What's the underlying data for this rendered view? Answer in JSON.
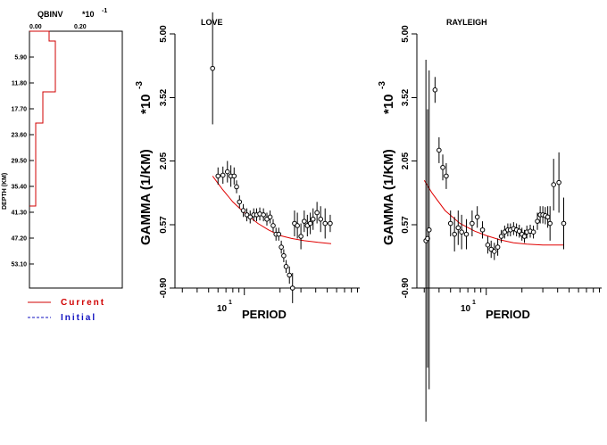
{
  "model_panel": {
    "title": "QBINV",
    "scale": "*10",
    "scale_exp": "-1",
    "x_ticks": [
      "0.00",
      "0.20"
    ],
    "ylabel": "DEPTH (KM)",
    "depth_ticks": [
      "5.90",
      "11.80",
      "17.70",
      "23.60",
      "29.50",
      "35.40",
      "41.30",
      "47.20",
      "53.10"
    ],
    "legend": [
      {
        "label": "Current",
        "color": "#d00000",
        "style": "solid"
      },
      {
        "label": "Initial",
        "color": "#1010c0",
        "style": "dashed"
      }
    ]
  },
  "chart_data": [
    {
      "type": "line",
      "title": "LOVE",
      "xlabel": "PERIOD",
      "ylabel": "GAMMA (1/KM)",
      "y_scale_label": "*10",
      "y_scale_exp": "-3",
      "x_scale": "log",
      "x_tick_label": "10",
      "x_tick_exp": "1",
      "y_ticks": [
        "5.00",
        "3.52",
        "2.05",
        "0.57",
        "-0.90"
      ],
      "ylim": [
        -0.9,
        5.0
      ],
      "xlim": [
        2.6,
        94
      ],
      "observed": [
        {
          "x": 5.4,
          "y": 4.2,
          "err": 1.3
        },
        {
          "x": 6.0,
          "y": 1.7,
          "err": 0.2
        },
        {
          "x": 6.6,
          "y": 1.72,
          "err": 0.2
        },
        {
          "x": 7.2,
          "y": 1.8,
          "err": 0.25
        },
        {
          "x": 7.7,
          "y": 1.7,
          "err": 0.25
        },
        {
          "x": 8.2,
          "y": 1.7,
          "err": 0.2
        },
        {
          "x": 8.6,
          "y": 1.45,
          "err": 0.15
        },
        {
          "x": 9.1,
          "y": 1.1,
          "err": 0.15
        },
        {
          "x": 9.8,
          "y": 0.9,
          "err": 0.15
        },
        {
          "x": 10.5,
          "y": 0.8,
          "err": 0.15
        },
        {
          "x": 11.2,
          "y": 0.75,
          "err": 0.15
        },
        {
          "x": 12.0,
          "y": 0.8,
          "err": 0.15
        },
        {
          "x": 12.7,
          "y": 0.8,
          "err": 0.15
        },
        {
          "x": 13.5,
          "y": 0.82,
          "err": 0.15
        },
        {
          "x": 14.5,
          "y": 0.8,
          "err": 0.15
        },
        {
          "x": 15.5,
          "y": 0.7,
          "err": 0.15
        },
        {
          "x": 16.5,
          "y": 0.75,
          "err": 0.15
        },
        {
          "x": 17.5,
          "y": 0.55,
          "err": 0.15
        },
        {
          "x": 18.5,
          "y": 0.35,
          "err": 0.15
        },
        {
          "x": 19.5,
          "y": 0.35,
          "err": 0.15
        },
        {
          "x": 20.5,
          "y": 0.05,
          "err": 0.15
        },
        {
          "x": 21.5,
          "y": -0.15,
          "err": 0.15
        },
        {
          "x": 22.5,
          "y": -0.4,
          "err": 0.15
        },
        {
          "x": 24.0,
          "y": -0.6,
          "err": 0.2
        },
        {
          "x": 25.5,
          "y": -0.9,
          "err": 0.35
        },
        {
          "x": 26.5,
          "y": 0.6,
          "err": 0.3
        },
        {
          "x": 28.0,
          "y": 0.55,
          "err": 0.3
        },
        {
          "x": 30.0,
          "y": 0.3,
          "err": 0.3
        },
        {
          "x": 32.0,
          "y": 0.65,
          "err": 0.25
        },
        {
          "x": 34.0,
          "y": 0.55,
          "err": 0.25
        },
        {
          "x": 36.0,
          "y": 0.6,
          "err": 0.25
        },
        {
          "x": 38.0,
          "y": 0.7,
          "err": 0.25
        },
        {
          "x": 41.0,
          "y": 0.85,
          "err": 0.25
        },
        {
          "x": 44.0,
          "y": 0.7,
          "err": 0.3
        },
        {
          "x": 48.0,
          "y": 0.6,
          "err": 0.35
        },
        {
          "x": 53.0,
          "y": 0.6,
          "err": 0.2
        }
      ],
      "predicted": [
        [
          5.4,
          1.7
        ],
        [
          6.5,
          1.4
        ],
        [
          8,
          1.1
        ],
        [
          10,
          0.85
        ],
        [
          13,
          0.6
        ],
        [
          16,
          0.45
        ],
        [
          20,
          0.32
        ],
        [
          25,
          0.25
        ],
        [
          32,
          0.2
        ],
        [
          42,
          0.16
        ],
        [
          54,
          0.13
        ]
      ]
    },
    {
      "type": "line",
      "title": "RAYLEIGH",
      "xlabel": "PERIOD",
      "ylabel": "GAMMA (1/KM)",
      "y_scale_label": "*10",
      "y_scale_exp": "-3",
      "x_scale": "log",
      "x_tick_label": "10",
      "x_tick_exp": "1",
      "y_ticks": [
        "5.00",
        "3.52",
        "2.05",
        "0.57",
        "-0.90"
      ],
      "ylim": [
        -0.9,
        5.0
      ],
      "xlim": [
        2.6,
        94
      ],
      "observed": [
        {
          "x": 3.1,
          "y": 0.2,
          "err": 4.2
        },
        {
          "x": 3.2,
          "y": 0.25,
          "err": 3.0
        },
        {
          "x": 3.3,
          "y": 0.45,
          "err": 3.7
        },
        {
          "x": 3.7,
          "y": 3.7,
          "err": 0.3
        },
        {
          "x": 4.0,
          "y": 2.3,
          "err": 0.3
        },
        {
          "x": 4.3,
          "y": 1.9,
          "err": 0.3
        },
        {
          "x": 4.6,
          "y": 1.7,
          "err": 0.3
        },
        {
          "x": 5.0,
          "y": 0.6,
          "err": 0.3
        },
        {
          "x": 5.4,
          "y": 0.35,
          "err": 0.4
        },
        {
          "x": 5.8,
          "y": 0.5,
          "err": 0.4
        },
        {
          "x": 6.2,
          "y": 0.4,
          "err": 0.4
        },
        {
          "x": 6.8,
          "y": 0.35,
          "err": 0.35
        },
        {
          "x": 7.6,
          "y": 0.6,
          "err": 0.3
        },
        {
          "x": 8.4,
          "y": 0.75,
          "err": 0.25
        },
        {
          "x": 9.3,
          "y": 0.45,
          "err": 0.2
        },
        {
          "x": 10.3,
          "y": 0.1,
          "err": 0.2
        },
        {
          "x": 11.0,
          "y": 0.0,
          "err": 0.2
        },
        {
          "x": 11.7,
          "y": -0.05,
          "err": 0.2
        },
        {
          "x": 12.5,
          "y": 0.05,
          "err": 0.2
        },
        {
          "x": 13.4,
          "y": 0.3,
          "err": 0.15
        },
        {
          "x": 14.3,
          "y": 0.4,
          "err": 0.15
        },
        {
          "x": 15.2,
          "y": 0.45,
          "err": 0.15
        },
        {
          "x": 16.0,
          "y": 0.45,
          "err": 0.15
        },
        {
          "x": 17.0,
          "y": 0.48,
          "err": 0.15
        },
        {
          "x": 18.0,
          "y": 0.45,
          "err": 0.15
        },
        {
          "x": 19.0,
          "y": 0.42,
          "err": 0.15
        },
        {
          "x": 20.0,
          "y": 0.35,
          "err": 0.15
        },
        {
          "x": 21.0,
          "y": 0.3,
          "err": 0.15
        },
        {
          "x": 22.0,
          "y": 0.4,
          "err": 0.15
        },
        {
          "x": 23.5,
          "y": 0.42,
          "err": 0.15
        },
        {
          "x": 25.0,
          "y": 0.4,
          "err": 0.15
        },
        {
          "x": 27.0,
          "y": 0.65,
          "err": 0.2
        },
        {
          "x": 28.5,
          "y": 0.8,
          "err": 0.2
        },
        {
          "x": 30.0,
          "y": 0.8,
          "err": 0.2
        },
        {
          "x": 31.5,
          "y": 0.78,
          "err": 0.2
        },
        {
          "x": 33.0,
          "y": 0.75,
          "err": 0.25
        },
        {
          "x": 34.5,
          "y": 0.6,
          "err": 0.4
        },
        {
          "x": 37.0,
          "y": 1.5,
          "err": 0.6
        },
        {
          "x": 41.0,
          "y": 1.55,
          "err": 0.7
        },
        {
          "x": 45.0,
          "y": 0.6,
          "err": 0.6
        }
      ],
      "predicted": [
        [
          3.0,
          1.6
        ],
        [
          3.5,
          1.3
        ],
        [
          4.5,
          0.9
        ],
        [
          6,
          0.6
        ],
        [
          8,
          0.42
        ],
        [
          10,
          0.32
        ],
        [
          13,
          0.22
        ],
        [
          17,
          0.15
        ],
        [
          22,
          0.12
        ],
        [
          30,
          0.1
        ],
        [
          45,
          0.1
        ]
      ]
    }
  ]
}
